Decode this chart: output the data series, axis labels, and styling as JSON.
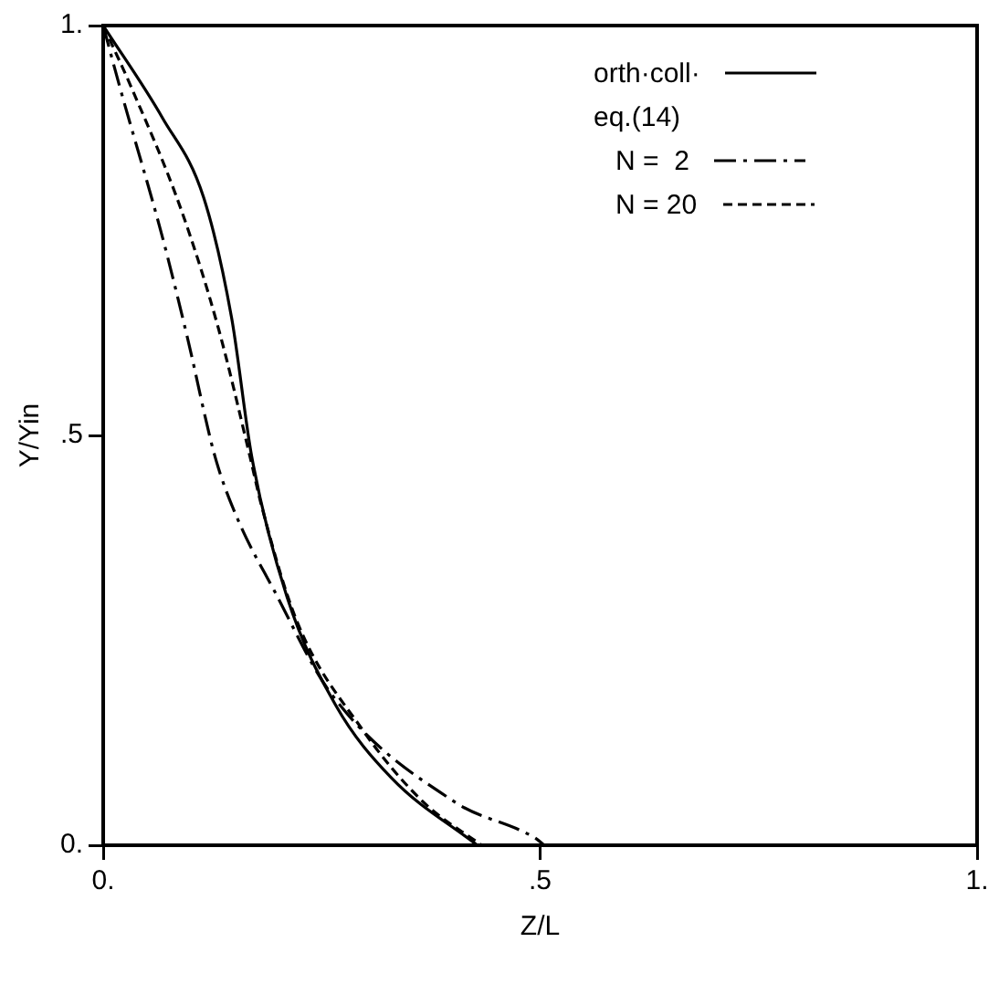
{
  "chart_data": {
    "type": "line",
    "xlabel": "Z/L",
    "ylabel": "Y/Yin",
    "xlim": [
      0,
      1
    ],
    "ylim": [
      0,
      1
    ],
    "xticks": [
      {
        "value": 0,
        "label": "0."
      },
      {
        "value": 0.5,
        "label": ".5"
      },
      {
        "value": 1,
        "label": "1."
      }
    ],
    "yticks": [
      {
        "value": 0,
        "label": "0."
      },
      {
        "value": 0.5,
        "label": ".5"
      },
      {
        "value": 1,
        "label": "1."
      }
    ],
    "grid": false,
    "legend": "top right",
    "marker": "none",
    "annotations": [
      "eq.(14)"
    ],
    "series": [
      {
        "name": "orth·coll·",
        "color": "#000000",
        "line_style": "solid",
        "x": [
          0,
          0.068,
          0.115,
          0.147,
          0.17,
          0.21,
          0.266,
          0.33,
          0.428
        ],
        "values": [
          1,
          0.887,
          0.79,
          0.643,
          0.474,
          0.304,
          0.171,
          0.082,
          0
        ]
      },
      {
        "name": "N =  2",
        "color": "#000000",
        "line_style": "dashdot",
        "x": [
          0,
          0.019,
          0.068,
          0.096,
          0.128,
          0.153,
          0.196,
          0.26,
          0.402,
          0.494,
          0.505
        ],
        "values": [
          1,
          0.925,
          0.741,
          0.621,
          0.474,
          0.4,
          0.31,
          0.186,
          0.053,
          0.009,
          0
        ]
      },
      {
        "name": "N = 20",
        "color": "#000000",
        "line_style": "dashed",
        "x": [
          0,
          0.032,
          0.089,
          0.132,
          0.168,
          0.181,
          0.221,
          0.296,
          0.366,
          0.433
        ],
        "values": [
          1,
          0.925,
          0.776,
          0.63,
          0.474,
          0.415,
          0.275,
          0.142,
          0.053,
          0
        ]
      }
    ]
  }
}
